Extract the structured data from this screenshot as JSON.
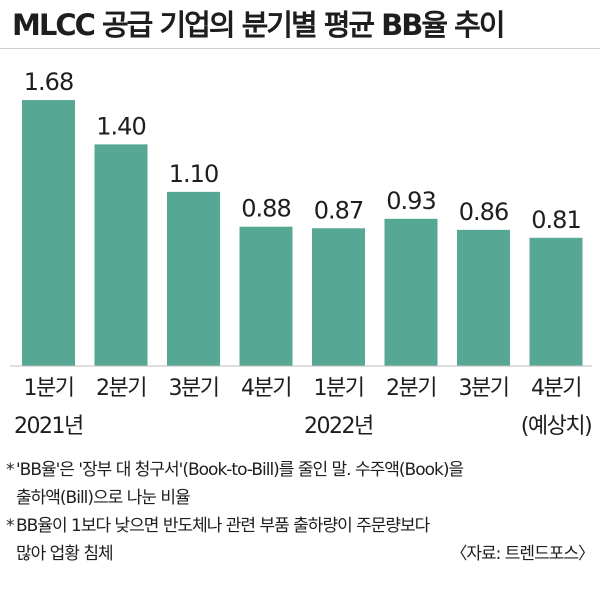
{
  "title": "MLCC 공급 기업의 분기별 평균 BB율 추이",
  "chart_data": {
    "type": "bar",
    "title": "MLCC 공급 기업의 분기별 평균 BB율 추이",
    "categories": [
      "1분기",
      "2분기",
      "3분기",
      "4분기",
      "1분기",
      "2분기",
      "3분기",
      "4분기"
    ],
    "value_labels": [
      "1.68",
      "1.40",
      "1.10",
      "0.88",
      "0.87",
      "0.93",
      "0.86",
      "0.81"
    ],
    "values": [
      1.68,
      1.4,
      1.1,
      0.88,
      0.87,
      0.93,
      0.86,
      0.81
    ],
    "groups": [
      {
        "label": "2021년",
        "categories": [
          0,
          1,
          2,
          3
        ]
      },
      {
        "label": "2022년",
        "categories": [
          4,
          5,
          6,
          7
        ]
      }
    ],
    "annotations": [
      "(예상치)"
    ],
    "xlabel": "",
    "ylabel": "",
    "ylim": [
      0,
      2
    ],
    "grid": false,
    "colors": {
      "bar": "#56a894",
      "text": "#1e1e1e",
      "axis": "#bdbdbd"
    }
  },
  "notes": [
    {
      "star": "*",
      "line1": "'BB율'은 '장부 대 청구서'(Book-to-Bill)를 줄인 말. 수주액(Book)을",
      "line2": "출하액(Bill)으로 나눈 비율"
    },
    {
      "star": "*",
      "line1": "BB율이 1보다 낮으면 반도체나 관련 부품 출하량이 주문량보다",
      "line2": "많아 업황 침체"
    }
  ],
  "source": "〈자료: 트렌드포스〉"
}
